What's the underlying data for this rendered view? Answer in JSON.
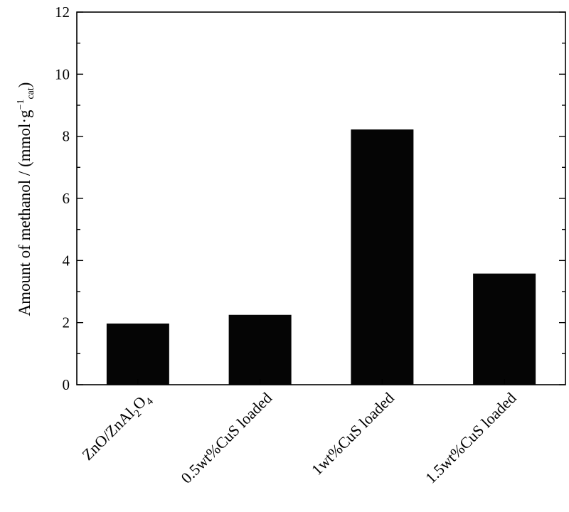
{
  "chart_data": {
    "type": "bar",
    "categories": [
      {
        "main": "ZnO/ZnAl",
        "sub1": "2",
        "mid": "O",
        "sub2": "4"
      },
      "0.5wt%CuS loaded",
      "1wt%CuS loaded",
      "1.5wt%CuS loaded"
    ],
    "category_text": [
      "ZnO/ZnAl2O4",
      "0.5wt%CuS loaded",
      "1wt%CuS loaded",
      "1.5wt%CuS loaded"
    ],
    "values": [
      1.97,
      2.25,
      8.22,
      3.58
    ],
    "ylabel": {
      "main": "Amount of methanol / (mmol·g",
      "sup": "−1",
      "sub": "cat",
      "close": ")"
    },
    "ylim": [
      0,
      12
    ],
    "yticks": [
      "0",
      "2",
      "4",
      "6",
      "8",
      "10",
      "12"
    ],
    "grid": false,
    "bar_color": "#050505"
  }
}
